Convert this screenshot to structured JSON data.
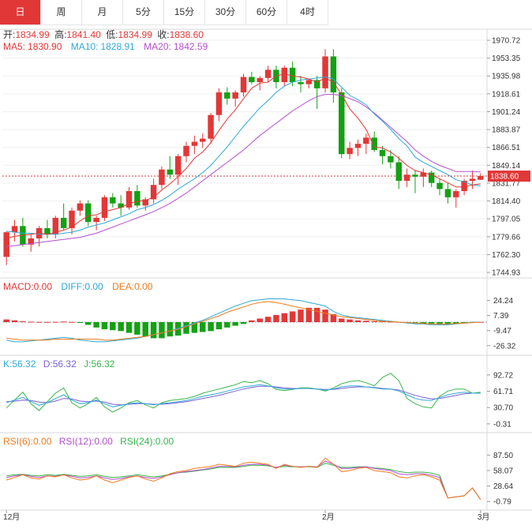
{
  "tabs": [
    "日",
    "周",
    "月",
    "5分",
    "15分",
    "30分",
    "60分",
    "4时"
  ],
  "active_tab": 0,
  "colors": {
    "up": "#e23737",
    "down": "#13a113",
    "ma5": "#e23737",
    "ma10": "#2ea8d8",
    "ma20": "#b44fcf",
    "diff": "#2ea8d8",
    "dea": "#f07a1c",
    "k": "#2ea8d8",
    "d": "#7a5fd3",
    "j": "#39b54a",
    "rsi6": "#f07a1c",
    "rsi12": "#b44fcf",
    "rsi24": "#39b54a"
  },
  "ohlc": {
    "open_label": "开:",
    "open": "1834.99",
    "high_label": "高:",
    "high": "1841.40",
    "low_label": "低:",
    "low": "1834.99",
    "close_label": "收:",
    "close": "1838.60"
  },
  "ma": {
    "ma5_label": "MA5:",
    "ma5": "1830.90",
    "ma10_label": "MA10:",
    "ma10": "1828.91",
    "ma20_label": "MA20:",
    "ma20": "1842.59"
  },
  "macd": {
    "macd_label": "MACD:",
    "macd": "0.00",
    "diff_label": "DIFF:",
    "diff": "0.00",
    "dea_label": "DEA:",
    "dea": "0.00"
  },
  "kdj": {
    "k_label": "K:",
    "k": "56.32",
    "d_label": "D:",
    "d": "56.32",
    "j_label": "J:",
    "j": "56.32"
  },
  "rsi": {
    "rsi6_label": "RSI(6):",
    "rsi6": "0.00",
    "rsi12_label": "RSI(12):",
    "rsi12": "0.00",
    "rsi24_label": "RSI(24):",
    "rsi24": "0.00"
  },
  "chart_data": {
    "type": "candlestick",
    "price_ticks": [
      "1970.72",
      "1953.35",
      "1935.98",
      "1918.61",
      "1901.24",
      "1883.87",
      "1866.51",
      "1849.14",
      "1831.77",
      "1814.40",
      "1797.05",
      "1779.66",
      "1762.30",
      "1744.93"
    ],
    "price_range": [
      1744.93,
      1970.72
    ],
    "last_price": "1838.60",
    "x_labels": [
      {
        "label": "12月",
        "index": 0
      },
      {
        "label": "2月",
        "index": 39
      },
      {
        "label": "3月",
        "index": 58
      }
    ],
    "candles": [
      [
        1760,
        1785,
        1752,
        1784
      ],
      [
        1784,
        1796,
        1775,
        1790
      ],
      [
        1790,
        1798,
        1770,
        1772
      ],
      [
        1772,
        1782,
        1765,
        1778
      ],
      [
        1778,
        1790,
        1770,
        1788
      ],
      [
        1788,
        1796,
        1778,
        1782
      ],
      [
        1782,
        1800,
        1778,
        1798
      ],
      [
        1798,
        1812,
        1786,
        1788
      ],
      [
        1788,
        1808,
        1782,
        1805
      ],
      [
        1805,
        1815,
        1800,
        1812
      ],
      [
        1812,
        1815,
        1790,
        1794
      ],
      [
        1794,
        1800,
        1786,
        1798
      ],
      [
        1798,
        1820,
        1795,
        1818
      ],
      [
        1818,
        1822,
        1808,
        1812
      ],
      [
        1812,
        1820,
        1800,
        1808
      ],
      [
        1808,
        1828,
        1806,
        1824
      ],
      [
        1824,
        1830,
        1808,
        1810
      ],
      [
        1810,
        1818,
        1805,
        1816
      ],
      [
        1816,
        1836,
        1812,
        1830
      ],
      [
        1830,
        1848,
        1826,
        1845
      ],
      [
        1845,
        1858,
        1836,
        1840
      ],
      [
        1840,
        1860,
        1830,
        1858
      ],
      [
        1858,
        1872,
        1852,
        1868
      ],
      [
        1868,
        1878,
        1860,
        1872
      ],
      [
        1872,
        1880,
        1866,
        1875
      ],
      [
        1875,
        1900,
        1870,
        1898
      ],
      [
        1898,
        1924,
        1892,
        1920
      ],
      [
        1920,
        1925,
        1908,
        1914
      ],
      [
        1914,
        1922,
        1906,
        1920
      ],
      [
        1920,
        1938,
        1916,
        1935
      ],
      [
        1935,
        1940,
        1928,
        1930
      ],
      [
        1930,
        1936,
        1922,
        1934
      ],
      [
        1934,
        1946,
        1930,
        1942
      ],
      [
        1942,
        1946,
        1924,
        1930
      ],
      [
        1930,
        1946,
        1926,
        1944
      ],
      [
        1944,
        1950,
        1926,
        1930
      ],
      [
        1930,
        1936,
        1920,
        1928
      ],
      [
        1928,
        1933,
        1924,
        1932
      ],
      [
        1932,
        1936,
        1904,
        1924
      ],
      [
        1924,
        1962,
        1920,
        1955
      ],
      [
        1955,
        1962,
        1910,
        1920
      ],
      [
        1920,
        1924,
        1856,
        1860
      ],
      [
        1860,
        1872,
        1855,
        1866
      ],
      [
        1866,
        1874,
        1858,
        1870
      ],
      [
        1870,
        1880,
        1860,
        1876
      ],
      [
        1876,
        1882,
        1862,
        1864
      ],
      [
        1864,
        1868,
        1850,
        1858
      ],
      [
        1858,
        1864,
        1846,
        1852
      ],
      [
        1852,
        1858,
        1826,
        1834
      ],
      [
        1834,
        1846,
        1828,
        1840
      ],
      [
        1840,
        1844,
        1822,
        1838
      ],
      [
        1838,
        1846,
        1828,
        1842
      ],
      [
        1842,
        1844,
        1828,
        1832
      ],
      [
        1832,
        1836,
        1820,
        1826
      ],
      [
        1826,
        1832,
        1812,
        1818
      ],
      [
        1818,
        1826,
        1808,
        1824
      ],
      [
        1824,
        1836,
        1820,
        1834
      ],
      [
        1834,
        1844,
        1826,
        1836
      ],
      [
        1834.99,
        1841.4,
        1834.99,
        1838.6
      ]
    ],
    "ma5": [
      1778,
      1780,
      1781,
      1782,
      1783,
      1782,
      1784,
      1786,
      1789,
      1795,
      1800,
      1801,
      1804,
      1806,
      1808,
      1812,
      1814,
      1815,
      1818,
      1825,
      1831,
      1838,
      1846,
      1856,
      1862,
      1871,
      1883,
      1894,
      1903,
      1914,
      1924,
      1929,
      1930,
      1936,
      1938,
      1936,
      1935,
      1933,
      1930,
      1934,
      1930,
      1918,
      1904,
      1895,
      1884,
      1867,
      1866,
      1862,
      1856,
      1849,
      1844,
      1842,
      1840,
      1836,
      1832,
      1828,
      1828,
      1830,
      1831
    ],
    "ma10": [
      1785,
      1784,
      1783,
      1783,
      1782,
      1782,
      1782,
      1783,
      1784,
      1786,
      1789,
      1791,
      1793,
      1796,
      1799,
      1802,
      1806,
      1808,
      1811,
      1815,
      1820,
      1826,
      1831,
      1836,
      1842,
      1849,
      1858,
      1867,
      1877,
      1887,
      1896,
      1905,
      1912,
      1920,
      1926,
      1930,
      1932,
      1933,
      1934,
      1935,
      1933,
      1925,
      1917,
      1913,
      1908,
      1899,
      1892,
      1884,
      1875,
      1868,
      1857,
      1852,
      1848,
      1844,
      1840,
      1835,
      1833,
      1830,
      1829
    ],
    "ma20": [
      1770,
      1771,
      1772,
      1773,
      1774,
      1775,
      1776,
      1777,
      1778,
      1779,
      1781,
      1783,
      1786,
      1789,
      1792,
      1795,
      1798,
      1801,
      1804,
      1808,
      1812,
      1817,
      1822,
      1828,
      1834,
      1840,
      1846,
      1852,
      1858,
      1864,
      1871,
      1878,
      1884,
      1890,
      1896,
      1902,
      1907,
      1912,
      1916,
      1918,
      1918,
      1917,
      1914,
      1911,
      1906,
      1900,
      1893,
      1886,
      1879,
      1872,
      1864,
      1858,
      1853,
      1849,
      1846,
      1843,
      1843,
      1843,
      1842.6
    ],
    "macd_ticks": [
      "24.24",
      "7.39",
      "-9.47",
      "-26.32"
    ],
    "macd_range": [
      -30,
      30
    ],
    "macd_hist": [
      3,
      2,
      1,
      0.5,
      0.3,
      0.2,
      0.3,
      0.6,
      0.2,
      -0.5,
      -3,
      -6,
      -8,
      -9,
      -10,
      -12,
      -14,
      -16,
      -18,
      -18,
      -16,
      -15,
      -13,
      -12,
      -11,
      -10,
      -8,
      -6,
      -4,
      -2,
      2,
      4,
      6,
      8,
      10,
      12,
      14,
      16,
      16,
      14,
      9,
      4,
      3,
      2,
      1.5,
      1,
      0.8,
      0.5,
      0.3,
      -0.2,
      -1,
      -1.5,
      -2,
      -2.5,
      -2.5,
      -2,
      -1.5,
      -0.5,
      0.2
    ],
    "diff": [
      -20,
      -22,
      -22,
      -21,
      -20,
      -19,
      -18,
      -17,
      -18,
      -20,
      -21,
      -22,
      -22,
      -21,
      -20,
      -19,
      -18,
      -16,
      -14,
      -12,
      -10,
      -7,
      -4,
      -1,
      2,
      6,
      10,
      14,
      18,
      21,
      24,
      25,
      26,
      26,
      26,
      25,
      24,
      22,
      20,
      18,
      12,
      8,
      6,
      5,
      4,
      3,
      2,
      1,
      0,
      -1,
      -2,
      -2,
      -3,
      -3,
      -3,
      -2,
      -1,
      0,
      0
    ],
    "dea": [
      -18,
      -19,
      -20,
      -20,
      -20,
      -20,
      -19,
      -19,
      -19,
      -19,
      -19,
      -19,
      -20,
      -20,
      -19,
      -18,
      -17,
      -16,
      -14,
      -12,
      -10,
      -8,
      -5,
      -2,
      1,
      4,
      7,
      11,
      14,
      17,
      20,
      22,
      23,
      22,
      20,
      18,
      16,
      14,
      12,
      10,
      8,
      6,
      5,
      4,
      3,
      2,
      1,
      0.5,
      0,
      -0.5,
      -1,
      -1.5,
      -2,
      -2,
      -2,
      -1.5,
      -1,
      -0.5,
      0
    ],
    "kdj_ticks": [
      "92.72",
      "61.71",
      "30.70",
      "-0.31"
    ],
    "kdj_range": [
      -5,
      100
    ],
    "k": [
      40,
      45,
      50,
      42,
      35,
      40,
      48,
      55,
      45,
      38,
      40,
      45,
      38,
      32,
      35,
      38,
      40,
      38,
      36,
      38,
      40,
      42,
      44,
      48,
      52,
      55,
      58,
      62,
      66,
      70,
      72,
      74,
      72,
      68,
      66,
      66,
      67,
      67,
      66,
      64,
      66,
      70,
      72,
      72,
      70,
      68,
      66,
      66,
      62,
      55,
      48,
      45,
      44,
      50,
      55,
      58,
      60,
      58,
      58
    ],
    "d": [
      42,
      43,
      45,
      44,
      41,
      40,
      43,
      48,
      47,
      43,
      42,
      43,
      41,
      37,
      36,
      37,
      38,
      38,
      37,
      37,
      38,
      40,
      42,
      45,
      48,
      51,
      54,
      58,
      62,
      66,
      69,
      71,
      71,
      70,
      68,
      67,
      67,
      67,
      66,
      65,
      65,
      67,
      69,
      70,
      70,
      69,
      67,
      66,
      64,
      59,
      54,
      50,
      47,
      48,
      51,
      54,
      57,
      58,
      58
    ],
    "j": [
      30,
      45,
      60,
      38,
      25,
      42,
      58,
      68,
      40,
      30,
      38,
      50,
      32,
      22,
      30,
      40,
      44,
      36,
      30,
      40,
      44,
      46,
      48,
      52,
      58,
      62,
      66,
      70,
      74,
      80,
      78,
      82,
      76,
      65,
      63,
      65,
      68,
      68,
      66,
      62,
      68,
      76,
      80,
      82,
      78,
      72,
      88,
      96,
      82,
      48,
      38,
      32,
      30,
      52,
      62,
      66,
      66,
      58,
      60
    ],
    "rsi_ticks": [
      "87.50",
      "58.07",
      "28.64",
      "-0.79"
    ],
    "rsi_range": [
      -5,
      100
    ],
    "rsi6": [
      40,
      45,
      50,
      44,
      42,
      48,
      46,
      50,
      44,
      40,
      42,
      48,
      40,
      35,
      40,
      45,
      48,
      42,
      38,
      44,
      52,
      56,
      58,
      62,
      64,
      66,
      70,
      68,
      66,
      72,
      74,
      72,
      70,
      62,
      70,
      66,
      64,
      66,
      64,
      82,
      70,
      56,
      58,
      62,
      64,
      58,
      56,
      54,
      46,
      44,
      48,
      50,
      46,
      40,
      6,
      8,
      10,
      25,
      3
    ],
    "rsi12": [
      45,
      48,
      50,
      47,
      45,
      48,
      47,
      50,
      47,
      44,
      45,
      48,
      44,
      41,
      43,
      46,
      48,
      45,
      43,
      46,
      50,
      54,
      56,
      58,
      60,
      63,
      66,
      66,
      65,
      68,
      70,
      70,
      68,
      64,
      68,
      66,
      65,
      66,
      65,
      76,
      70,
      62,
      62,
      64,
      65,
      62,
      60,
      58,
      52,
      50,
      52,
      52,
      49,
      45,
      6,
      8,
      10,
      25,
      3
    ],
    "rsi24": [
      48,
      50,
      51,
      49,
      48,
      50,
      49,
      51,
      49,
      47,
      48,
      50,
      47,
      45,
      46,
      48,
      50,
      48,
      46,
      48,
      51,
      54,
      55,
      57,
      59,
      61,
      64,
      64,
      64,
      66,
      68,
      68,
      67,
      64,
      66,
      65,
      65,
      65,
      64,
      72,
      68,
      64,
      64,
      65,
      65,
      63,
      62,
      60,
      56,
      54,
      55,
      55,
      53,
      49,
      6,
      8,
      10,
      25,
      3
    ]
  }
}
